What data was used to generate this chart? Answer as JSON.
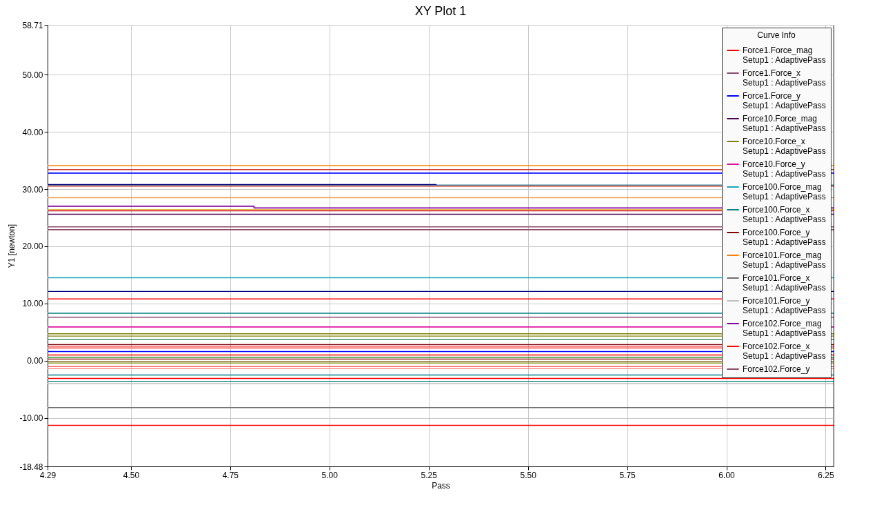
{
  "chart_data": {
    "type": "line",
    "title": "XY Plot 1",
    "xlabel": "Pass",
    "ylabel": "Y1 [newton]",
    "legend_title": "Curve Info",
    "legend": "top right",
    "grid": true,
    "x": [
      4.29,
      6.27
    ],
    "xlim": [
      4.29,
      6.27
    ],
    "xticks": [
      4.29,
      {
        "value": 4.5,
        "label": "4.50"
      },
      4.75,
      {
        "value": 5,
        "label": "5.00"
      },
      5.25,
      {
        "value": 5.5,
        "label": "5.50"
      },
      5.75,
      {
        "value": 6,
        "label": "6.00"
      },
      6.25
    ],
    "ylim": [
      -18.48,
      58.71
    ],
    "yticks": [
      -18.48,
      {
        "value": -10,
        "label": "-10.00"
      },
      {
        "value": 0,
        "label": "0.00"
      },
      {
        "value": 10,
        "label": "10.00"
      },
      {
        "value": 20,
        "label": "20.00"
      },
      {
        "value": 30,
        "label": "30.00"
      },
      {
        "value": 40,
        "label": "40.00"
      },
      {
        "value": 50,
        "label": "50.00"
      },
      58.71
    ],
    "series": [
      {
        "name": "Force1.Force_mag\nSetup1 : AdaptivePass",
        "color": "#ff0000",
        "values": [
          10.8,
          10.8
        ]
      },
      {
        "name": "Force1.Force_x\nSetup1 : AdaptivePass",
        "color": "#8b4b6b",
        "values": [
          23.4,
          23.4
        ]
      },
      {
        "name": "Force1.Force_y\nSetup1 : AdaptivePass",
        "color": "#0000ff",
        "values": [
          32.8,
          32.8
        ]
      },
      {
        "name": "Force10.Force_mag\nSetup1 : AdaptivePass",
        "color": "#4b0050",
        "values": [
          25.6,
          25.6
        ]
      },
      {
        "name": "Force10.Force_x\nSetup1 : AdaptivePass",
        "color": "#808000",
        "values": [
          4.7,
          4.7
        ]
      },
      {
        "name": "Force10.Force_y\nSetup1 : AdaptivePass",
        "color": "#e0109f",
        "values": [
          5.9,
          5.9
        ]
      },
      {
        "name": "Force100.Force_mag\nSetup1 : AdaptivePass",
        "color": "#1aa7c0",
        "values": [
          14.5,
          14.5
        ]
      },
      {
        "name": "Force100.Force_x\nSetup1 : AdaptivePass",
        "color": "#008080",
        "values": [
          8.3,
          8.3
        ]
      },
      {
        "name": "Force100.Force_y\nSetup1 : AdaptivePass",
        "color": "#800000",
        "values": [
          2.8,
          2.8
        ]
      },
      {
        "name": "Force101.Force_mag\nSetup1 : AdaptivePass",
        "color": "#ff8000",
        "values": [
          34.1,
          34.1
        ]
      },
      {
        "name": "Force101.Force_x\nSetup1 : AdaptivePass",
        "color": "#707070",
        "values": [
          -8.2,
          -8.2
        ]
      },
      {
        "name": "Force101.Force_y\nSetup1 : AdaptivePass",
        "color": "#c0c0c0",
        "values": [
          -4.0,
          -4.0
        ]
      },
      {
        "name": "Force102.Force_mag\nSetup1 : AdaptivePass",
        "color": "#8000a0",
        "x": [
          4.29,
          4.81,
          4.81,
          6.27
        ],
        "values": [
          27.0,
          27.0,
          26.7,
          26.7
        ]
      },
      {
        "name": "Force102.Force_x\nSetup1 : AdaptivePass",
        "color": "#ff0000",
        "values": [
          -11.3,
          -11.3
        ]
      },
      {
        "name": "Force102.Force_y",
        "color": "#8b4b6b",
        "values": [
          22.9,
          22.9
        ]
      },
      {
        "color": "#c00000",
        "values": [
          33.4,
          33.4
        ]
      },
      {
        "color": "#3a8fa0",
        "values": [
          30.7,
          30.7
        ]
      },
      {
        "color": "#000080",
        "x": [
          4.29,
          5.27
        ],
        "values": [
          30.8,
          30.8
        ]
      },
      {
        "color": "#e02020",
        "values": [
          30.5,
          30.5
        ]
      },
      {
        "color": "#f0a050",
        "values": [
          28.5,
          28.5
        ]
      },
      {
        "color": "#e0a000",
        "values": [
          26.4,
          26.4
        ]
      },
      {
        "color": "#d00020",
        "values": [
          26.2,
          26.2
        ]
      },
      {
        "color": "#000080",
        "values": [
          12.1,
          12.1
        ]
      },
      {
        "color": "#8b4b6b",
        "values": [
          7.6,
          7.6
        ]
      },
      {
        "color": "#808000",
        "values": [
          4.3,
          4.3
        ]
      },
      {
        "color": "#208040",
        "values": [
          3.7,
          3.7
        ]
      },
      {
        "color": "#ff2020",
        "values": [
          2.4,
          2.4
        ]
      },
      {
        "color": "#ff8080",
        "values": [
          2.1,
          2.1
        ]
      },
      {
        "color": "#0000ff",
        "values": [
          1.6,
          1.6
        ]
      },
      {
        "color": "#ff0000",
        "values": [
          1.0,
          1.0
        ]
      },
      {
        "color": "#008000",
        "values": [
          0.6,
          0.6
        ]
      },
      {
        "color": "#800000",
        "values": [
          0.3,
          0.3
        ]
      },
      {
        "color": "#806020",
        "values": [
          -0.1,
          -0.1
        ]
      },
      {
        "color": "#808000",
        "values": [
          -0.4,
          -0.4
        ]
      },
      {
        "color": "#ff4040",
        "values": [
          -1.0,
          -1.0
        ]
      },
      {
        "color": "#ff8080",
        "values": [
          -1.4,
          -1.4
        ]
      },
      {
        "color": "#008080",
        "values": [
          -2.5,
          -2.5
        ]
      },
      {
        "color": "#ff0000",
        "values": [
          -3.1,
          -3.1
        ]
      },
      {
        "color": "#008080",
        "values": [
          -3.6,
          -3.6
        ]
      }
    ]
  }
}
